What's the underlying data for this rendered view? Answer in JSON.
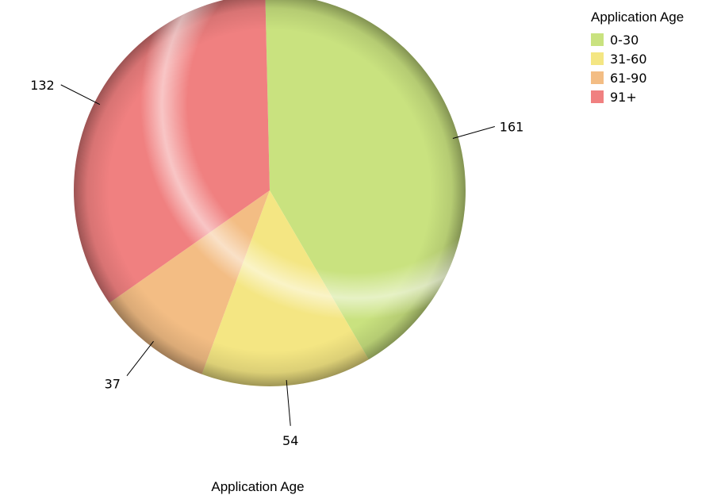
{
  "chart_data": {
    "type": "pie",
    "title": "",
    "xlabel": "Application Age",
    "legend_title": "Application Age",
    "legend_position": "top-right",
    "categories": [
      "0-30",
      "31-60",
      "61-90",
      "91+"
    ],
    "values": [
      161,
      54,
      37,
      132
    ],
    "colors": [
      "#C9E27F",
      "#F4E683",
      "#F3BD84",
      "#F08080"
    ],
    "data_labels": [
      "161",
      "54",
      "37",
      "132"
    ]
  }
}
